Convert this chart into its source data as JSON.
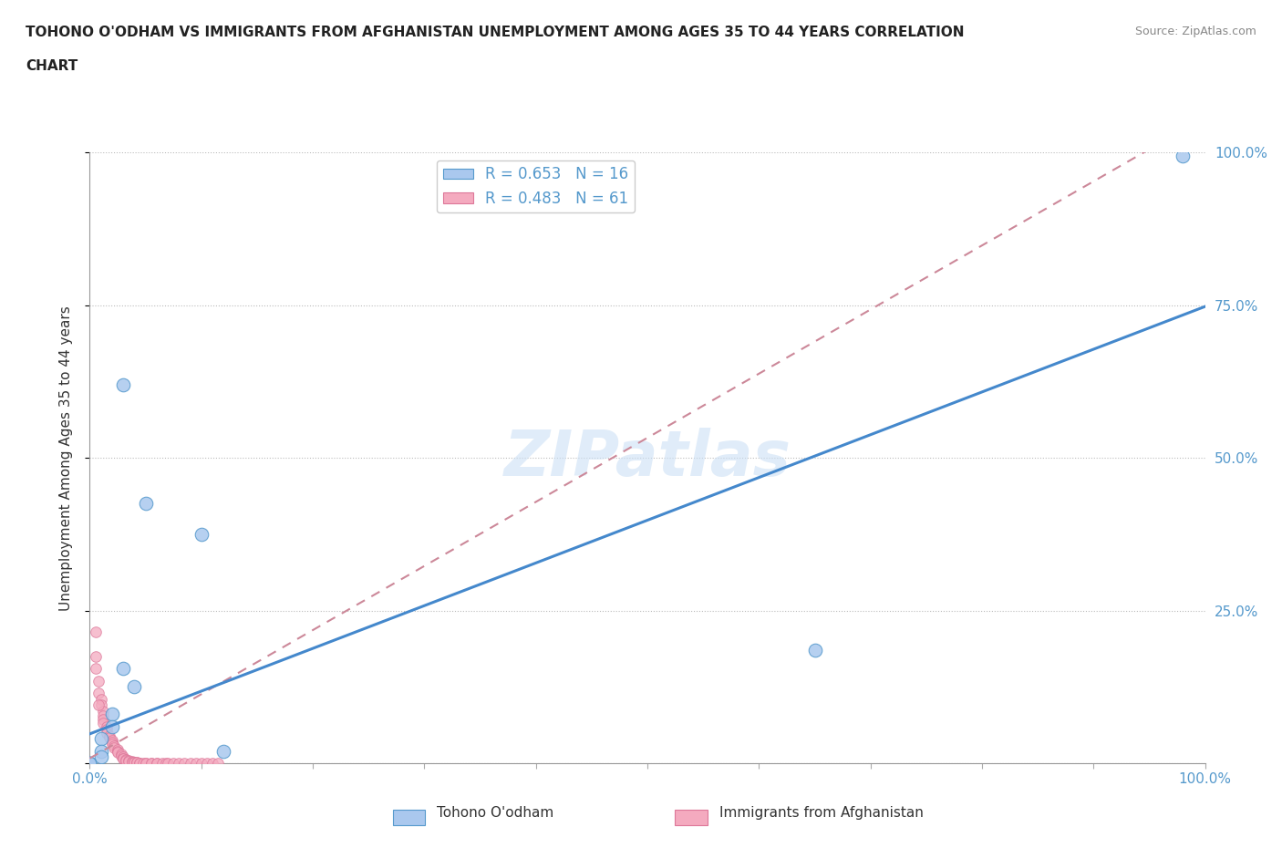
{
  "title_line1": "TOHONO O'ODHAM VS IMMIGRANTS FROM AFGHANISTAN UNEMPLOYMENT AMONG AGES 35 TO 44 YEARS CORRELATION",
  "title_line2": "CHART",
  "ylabel": "Unemployment Among Ages 35 to 44 years",
  "source": "Source: ZipAtlas.com",
  "watermark": "ZIPatlas",
  "xmin": 0.0,
  "xmax": 1.0,
  "ymin": 0.0,
  "ymax": 1.0,
  "blue_label": "Tohono O'odham",
  "pink_label": "Immigrants from Afghanistan",
  "blue_R": 0.653,
  "blue_N": 16,
  "pink_R": 0.483,
  "pink_N": 61,
  "blue_color": "#aac8ee",
  "pink_color": "#f4aabf",
  "blue_edge_color": "#5599cc",
  "pink_edge_color": "#dd7799",
  "blue_line_color": "#4488cc",
  "pink_line_color": "#cc8899",
  "grid_color": "#bbbbbb",
  "tick_label_color": "#5599cc",
  "title_color": "#222222",
  "blue_line_slope": 0.7,
  "blue_line_intercept": 0.048,
  "pink_line_slope": 1.05,
  "pink_line_intercept": 0.008,
  "blue_points": [
    [
      0.98,
      0.995
    ],
    [
      0.03,
      0.62
    ],
    [
      0.05,
      0.425
    ],
    [
      0.1,
      0.375
    ],
    [
      0.65,
      0.185
    ],
    [
      0.03,
      0.155
    ],
    [
      0.04,
      0.125
    ],
    [
      0.02,
      0.08
    ],
    [
      0.02,
      0.06
    ],
    [
      0.01,
      0.04
    ],
    [
      0.01,
      0.02
    ],
    [
      0.01,
      0.01
    ],
    [
      0.12,
      0.02
    ],
    [
      0.0,
      0.0
    ],
    [
      0.0,
      0.0
    ],
    [
      0.0,
      0.0
    ]
  ],
  "pink_points": [
    [
      0.005,
      0.215
    ],
    [
      0.005,
      0.175
    ],
    [
      0.005,
      0.155
    ],
    [
      0.008,
      0.135
    ],
    [
      0.008,
      0.115
    ],
    [
      0.01,
      0.105
    ],
    [
      0.01,
      0.095
    ],
    [
      0.012,
      0.085
    ],
    [
      0.012,
      0.078
    ],
    [
      0.012,
      0.072
    ],
    [
      0.012,
      0.065
    ],
    [
      0.015,
      0.06
    ],
    [
      0.015,
      0.055
    ],
    [
      0.015,
      0.05
    ],
    [
      0.018,
      0.045
    ],
    [
      0.018,
      0.042
    ],
    [
      0.02,
      0.038
    ],
    [
      0.02,
      0.035
    ],
    [
      0.02,
      0.032
    ],
    [
      0.022,
      0.028
    ],
    [
      0.022,
      0.025
    ],
    [
      0.025,
      0.022
    ],
    [
      0.025,
      0.02
    ],
    [
      0.025,
      0.018
    ],
    [
      0.028,
      0.015
    ],
    [
      0.028,
      0.012
    ],
    [
      0.03,
      0.01
    ],
    [
      0.03,
      0.008
    ],
    [
      0.03,
      0.007
    ],
    [
      0.032,
      0.006
    ],
    [
      0.032,
      0.005
    ],
    [
      0.035,
      0.004
    ],
    [
      0.035,
      0.003
    ],
    [
      0.038,
      0.003
    ],
    [
      0.038,
      0.002
    ],
    [
      0.04,
      0.002
    ],
    [
      0.04,
      0.001
    ],
    [
      0.042,
      0.001
    ],
    [
      0.042,
      0.001
    ],
    [
      0.045,
      0.0
    ],
    [
      0.045,
      0.0
    ],
    [
      0.048,
      0.0
    ],
    [
      0.05,
      0.0
    ],
    [
      0.05,
      0.0
    ],
    [
      0.055,
      0.0
    ],
    [
      0.055,
      0.0
    ],
    [
      0.06,
      0.0
    ],
    [
      0.06,
      0.0
    ],
    [
      0.065,
      0.0
    ],
    [
      0.068,
      0.0
    ],
    [
      0.07,
      0.0
    ],
    [
      0.075,
      0.0
    ],
    [
      0.08,
      0.0
    ],
    [
      0.085,
      0.0
    ],
    [
      0.09,
      0.0
    ],
    [
      0.095,
      0.0
    ],
    [
      0.1,
      0.0
    ],
    [
      0.105,
      0.0
    ],
    [
      0.11,
      0.0
    ],
    [
      0.115,
      0.0
    ],
    [
      0.008,
      0.095
    ]
  ]
}
